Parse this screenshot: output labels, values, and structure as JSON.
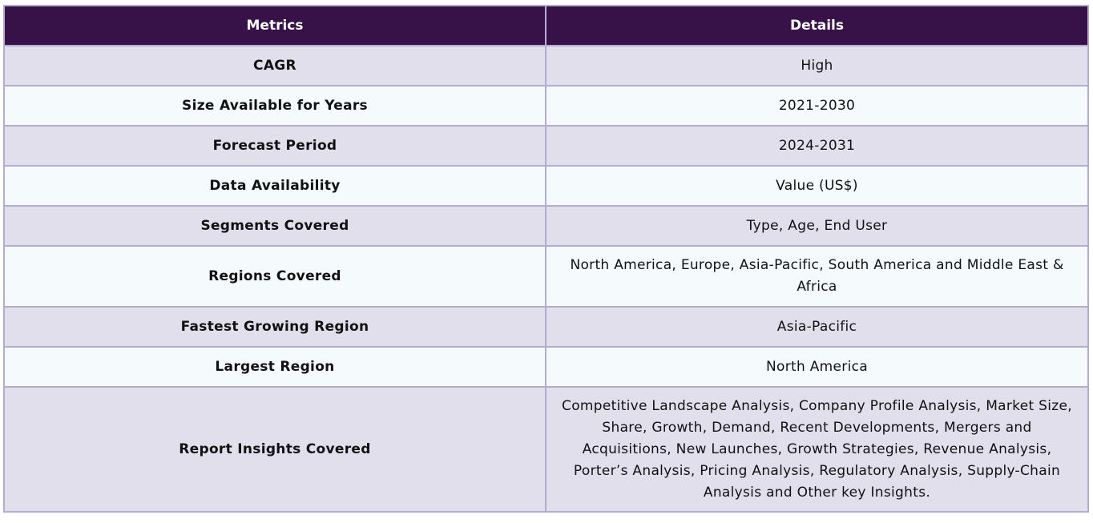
{
  "table": {
    "headers": {
      "metrics": "Metrics",
      "details": "Details"
    },
    "rows": [
      {
        "metric": "CAGR",
        "detail": "High"
      },
      {
        "metric": "Size Available for Years",
        "detail": "2021-2030"
      },
      {
        "metric": "Forecast Period",
        "detail": "2024-2031"
      },
      {
        "metric": "Data Availability",
        "detail": "Value (US$)"
      },
      {
        "metric": "Segments Covered",
        "detail": "Type, Age, End User"
      },
      {
        "metric": "Regions Covered",
        "detail": "North America, Europe, Asia-Pacific, South America and Middle East & Africa"
      },
      {
        "metric": "Fastest Growing Region",
        "detail": "Asia-Pacific"
      },
      {
        "metric": "Largest Region",
        "detail": "North America"
      },
      {
        "metric": "Report Insights Covered",
        "detail": "Competitive Landscape Analysis, Company Profile Analysis, Market Size, Share, Growth, Demand, Recent Developments, Mergers and Acquisitions, New Launches, Growth Strategies, Revenue Analysis, Porter’s Analysis, Pricing Analysis, Regulatory Analysis, Supply-Chain Analysis and Other key Insights."
      }
    ]
  },
  "colors": {
    "header_bg": "#371249",
    "header_text": "#ffffff",
    "row_odd_bg": "#e1dfec",
    "row_even_bg": "#f5fafc",
    "border": "#b3acd0"
  }
}
